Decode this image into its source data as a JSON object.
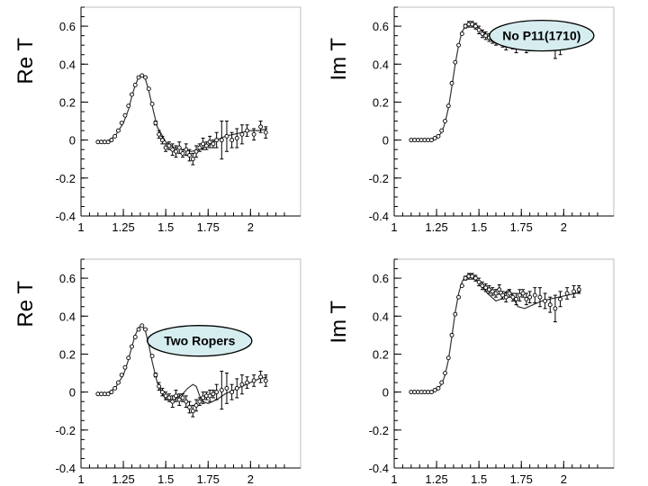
{
  "chart_data": [
    {
      "type": "scatter",
      "ylabel": "Re T",
      "xlim": [
        1.0,
        2.2
      ],
      "ylim": [
        -0.4,
        0.7
      ],
      "xticks": [
        {
          "v": 1,
          "label": "1"
        },
        {
          "v": 1.25,
          "label": "1.25"
        },
        {
          "v": 1.5,
          "label": "1.5"
        },
        {
          "v": 1.75,
          "label": "1.75"
        },
        {
          "v": 2,
          "label": "2"
        }
      ],
      "yticks": [
        {
          "v": 0.6,
          "label": "0.6"
        },
        {
          "v": 0.4,
          "label": "0.4"
        },
        {
          "v": 0.2,
          "label": "0.2"
        },
        {
          "v": 0,
          "label": "0"
        },
        {
          "v": -0.2,
          "label": "-0.2"
        },
        {
          "v": -0.4,
          "label": "-0.4"
        }
      ],
      "annotation": null,
      "curve": {
        "x": [
          1.1,
          1.15,
          1.2,
          1.25,
          1.28,
          1.3,
          1.32,
          1.34,
          1.36,
          1.38,
          1.4,
          1.42,
          1.45,
          1.5,
          1.55,
          1.6,
          1.65,
          1.7,
          1.75,
          1.8,
          1.85,
          1.9,
          1.95,
          2.0,
          2.05,
          2.1
        ],
        "y": [
          -0.01,
          -0.01,
          0.02,
          0.09,
          0.16,
          0.23,
          0.29,
          0.33,
          0.34,
          0.32,
          0.26,
          0.18,
          0.07,
          -0.01,
          -0.04,
          -0.05,
          -0.06,
          -0.05,
          -0.03,
          0.0,
          0.02,
          0.03,
          0.04,
          0.05,
          0.05,
          0.06
        ]
      },
      "points": {
        "x": [
          1.1,
          1.12,
          1.14,
          1.16,
          1.18,
          1.2,
          1.22,
          1.24,
          1.26,
          1.28,
          1.3,
          1.32,
          1.34,
          1.36,
          1.38,
          1.4,
          1.42,
          1.44,
          1.46,
          1.48,
          1.5,
          1.52,
          1.54,
          1.56,
          1.58,
          1.6,
          1.62,
          1.64,
          1.66,
          1.68,
          1.7,
          1.72,
          1.74,
          1.76,
          1.78,
          1.8,
          1.83,
          1.86,
          1.89,
          1.92,
          1.95,
          1.98,
          2.02,
          2.06,
          2.09
        ],
        "y": [
          -0.01,
          -0.01,
          -0.01,
          -0.01,
          0.0,
          0.02,
          0.05,
          0.09,
          0.13,
          0.18,
          0.24,
          0.29,
          0.33,
          0.34,
          0.33,
          0.27,
          0.19,
          0.09,
          0.03,
          0.0,
          -0.04,
          -0.03,
          -0.05,
          -0.06,
          -0.04,
          -0.07,
          -0.05,
          -0.08,
          -0.1,
          -0.06,
          -0.04,
          -0.02,
          -0.03,
          -0.01,
          -0.02,
          0.0,
          0.0,
          0.02,
          0.0,
          0.01,
          0.03,
          0.05,
          0.03,
          0.07,
          0.04
        ],
        "err": [
          0.005,
          0.005,
          0.005,
          0.005,
          0.005,
          0.005,
          0.005,
          0.005,
          0.005,
          0.005,
          0.005,
          0.005,
          0.005,
          0.005,
          0.005,
          0.005,
          0.005,
          0.01,
          0.02,
          0.02,
          0.02,
          0.02,
          0.03,
          0.03,
          0.03,
          0.02,
          0.03,
          0.03,
          0.03,
          0.03,
          0.02,
          0.03,
          0.02,
          0.03,
          0.02,
          0.04,
          0.1,
          0.08,
          0.04,
          0.05,
          0.05,
          0.03,
          0.03,
          0.03,
          0.03
        ]
      }
    },
    {
      "type": "scatter",
      "ylabel": "Im T",
      "xlim": [
        1.0,
        2.2
      ],
      "ylim": [
        -0.4,
        0.7
      ],
      "xticks": [
        {
          "v": 1,
          "label": "1"
        },
        {
          "v": 1.25,
          "label": "1.25"
        },
        {
          "v": 1.5,
          "label": "1.5"
        },
        {
          "v": 1.75,
          "label": "1.75"
        },
        {
          "v": 2,
          "label": "2"
        }
      ],
      "yticks": [
        {
          "v": 0.6,
          "label": "0.6"
        },
        {
          "v": 0.4,
          "label": "0.4"
        },
        {
          "v": 0.2,
          "label": "0.2"
        },
        {
          "v": 0,
          "label": "0"
        },
        {
          "v": -0.2,
          "label": "-0.2"
        },
        {
          "v": -0.4,
          "label": "-0.4"
        }
      ],
      "annotation": {
        "text": "No P11(1710)",
        "x": 1.87,
        "y": 0.55
      },
      "curve": {
        "x": [
          1.1,
          1.15,
          1.2,
          1.25,
          1.28,
          1.3,
          1.32,
          1.34,
          1.36,
          1.38,
          1.4,
          1.42,
          1.45,
          1.5,
          1.55,
          1.6,
          1.65,
          1.7,
          1.75,
          1.8,
          1.85,
          1.9,
          1.95,
          2.0,
          2.05,
          2.1
        ],
        "y": [
          0.0,
          0.0,
          0.0,
          0.01,
          0.04,
          0.09,
          0.17,
          0.28,
          0.4,
          0.5,
          0.57,
          0.6,
          0.61,
          0.59,
          0.55,
          0.52,
          0.5,
          0.49,
          0.49,
          0.49,
          0.5,
          0.5,
          0.51,
          0.52,
          0.53,
          0.53
        ]
      },
      "points": {
        "x": [
          1.1,
          1.12,
          1.14,
          1.16,
          1.18,
          1.2,
          1.22,
          1.24,
          1.26,
          1.28,
          1.3,
          1.32,
          1.34,
          1.36,
          1.38,
          1.4,
          1.42,
          1.44,
          1.46,
          1.48,
          1.5,
          1.52,
          1.54,
          1.56,
          1.58,
          1.6,
          1.62,
          1.64,
          1.66,
          1.68,
          1.7,
          1.72,
          1.74,
          1.76,
          1.78,
          1.8,
          1.83,
          1.86,
          1.89,
          1.92,
          1.95,
          1.98,
          2.02,
          2.06,
          2.09
        ],
        "y": [
          0.0,
          0.0,
          0.0,
          0.0,
          0.0,
          0.0,
          0.0,
          0.01,
          0.02,
          0.05,
          0.1,
          0.18,
          0.3,
          0.41,
          0.5,
          0.56,
          0.6,
          0.61,
          0.61,
          0.6,
          0.58,
          0.56,
          0.55,
          0.54,
          0.53,
          0.52,
          0.54,
          0.51,
          0.5,
          0.52,
          0.5,
          0.49,
          0.51,
          0.52,
          0.49,
          0.5,
          0.51,
          0.52,
          0.53,
          0.54,
          0.5,
          0.49,
          0.52,
          0.53,
          0.54
        ],
        "err": [
          0.005,
          0.005,
          0.005,
          0.005,
          0.005,
          0.005,
          0.005,
          0.005,
          0.005,
          0.005,
          0.005,
          0.005,
          0.005,
          0.005,
          0.005,
          0.005,
          0.01,
          0.015,
          0.015,
          0.015,
          0.02,
          0.02,
          0.02,
          0.02,
          0.02,
          0.02,
          0.025,
          0.02,
          0.025,
          0.02,
          0.02,
          0.03,
          0.03,
          0.02,
          0.03,
          0.03,
          0.04,
          0.05,
          0.04,
          0.04,
          0.07,
          0.04,
          0.03,
          0.03,
          0.02
        ]
      }
    },
    {
      "type": "scatter",
      "ylabel": "Re T",
      "xlim": [
        1.0,
        2.2
      ],
      "ylim": [
        -0.4,
        0.7
      ],
      "xticks": [
        {
          "v": 1,
          "label": "1"
        },
        {
          "v": 1.25,
          "label": "1.25"
        },
        {
          "v": 1.5,
          "label": "1.5"
        },
        {
          "v": 1.75,
          "label": "1.75"
        },
        {
          "v": 2,
          "label": "2"
        }
      ],
      "yticks": [
        {
          "v": 0.6,
          "label": "0.6"
        },
        {
          "v": 0.4,
          "label": "0.4"
        },
        {
          "v": 0.2,
          "label": "0.2"
        },
        {
          "v": 0,
          "label": "0"
        },
        {
          "v": -0.2,
          "label": "-0.2"
        },
        {
          "v": -0.4,
          "label": "-0.4"
        }
      ],
      "annotation": {
        "text": "Two Ropers",
        "x": 1.7,
        "y": 0.27
      },
      "curve": {
        "x": [
          1.1,
          1.15,
          1.2,
          1.25,
          1.28,
          1.3,
          1.32,
          1.34,
          1.36,
          1.38,
          1.4,
          1.42,
          1.45,
          1.5,
          1.55,
          1.6,
          1.63,
          1.66,
          1.68,
          1.7,
          1.72,
          1.75,
          1.8,
          1.85,
          1.9,
          1.95,
          2.0,
          2.05,
          2.1
        ],
        "y": [
          -0.01,
          -0.01,
          0.02,
          0.09,
          0.17,
          0.24,
          0.3,
          0.34,
          0.35,
          0.32,
          0.25,
          0.16,
          0.05,
          -0.04,
          -0.04,
          -0.01,
          0.02,
          0.04,
          0.03,
          -0.02,
          -0.05,
          -0.06,
          -0.04,
          -0.01,
          0.01,
          0.03,
          0.05,
          0.07,
          0.08
        ]
      },
      "points": {
        "x": [
          1.1,
          1.12,
          1.14,
          1.16,
          1.18,
          1.2,
          1.22,
          1.24,
          1.26,
          1.28,
          1.3,
          1.32,
          1.34,
          1.36,
          1.38,
          1.4,
          1.42,
          1.44,
          1.46,
          1.48,
          1.5,
          1.52,
          1.54,
          1.56,
          1.58,
          1.6,
          1.62,
          1.64,
          1.66,
          1.68,
          1.7,
          1.72,
          1.74,
          1.76,
          1.78,
          1.8,
          1.83,
          1.86,
          1.89,
          1.92,
          1.95,
          1.98,
          2.02,
          2.06,
          2.09
        ],
        "y": [
          -0.01,
          -0.01,
          -0.01,
          -0.01,
          0.0,
          0.02,
          0.05,
          0.09,
          0.13,
          0.18,
          0.24,
          0.29,
          0.33,
          0.35,
          0.33,
          0.27,
          0.19,
          0.09,
          0.03,
          0.0,
          -0.02,
          -0.03,
          -0.05,
          -0.02,
          -0.04,
          -0.03,
          -0.05,
          -0.08,
          -0.1,
          -0.07,
          -0.05,
          -0.03,
          -0.02,
          -0.02,
          -0.01,
          0.0,
          0.01,
          0.02,
          0.0,
          0.02,
          0.04,
          0.05,
          0.06,
          0.08,
          0.06
        ],
        "err": [
          0.005,
          0.005,
          0.005,
          0.005,
          0.005,
          0.005,
          0.005,
          0.005,
          0.005,
          0.005,
          0.005,
          0.005,
          0.005,
          0.005,
          0.005,
          0.005,
          0.005,
          0.01,
          0.02,
          0.02,
          0.02,
          0.02,
          0.03,
          0.03,
          0.03,
          0.02,
          0.03,
          0.03,
          0.03,
          0.03,
          0.02,
          0.03,
          0.02,
          0.03,
          0.02,
          0.04,
          0.1,
          0.08,
          0.04,
          0.05,
          0.05,
          0.03,
          0.03,
          0.03,
          0.03
        ]
      }
    },
    {
      "type": "scatter",
      "ylabel": "Im T",
      "xlim": [
        1.0,
        2.2
      ],
      "ylim": [
        -0.4,
        0.7
      ],
      "xticks": [
        {
          "v": 1,
          "label": "1"
        },
        {
          "v": 1.25,
          "label": "1.25"
        },
        {
          "v": 1.5,
          "label": "1.5"
        },
        {
          "v": 1.75,
          "label": "1.75"
        },
        {
          "v": 2,
          "label": "2"
        }
      ],
      "yticks": [
        {
          "v": 0.6,
          "label": "0.6"
        },
        {
          "v": 0.4,
          "label": "0.4"
        },
        {
          "v": 0.2,
          "label": "0.2"
        },
        {
          "v": 0,
          "label": "0"
        },
        {
          "v": -0.2,
          "label": "-0.2"
        },
        {
          "v": -0.4,
          "label": "-0.4"
        }
      ],
      "annotation": null,
      "curve": {
        "x": [
          1.1,
          1.15,
          1.2,
          1.25,
          1.28,
          1.3,
          1.32,
          1.34,
          1.36,
          1.38,
          1.4,
          1.42,
          1.45,
          1.5,
          1.55,
          1.6,
          1.63,
          1.66,
          1.68,
          1.7,
          1.73,
          1.77,
          1.82,
          1.87,
          1.92,
          1.97,
          2.02,
          2.07,
          2.1
        ],
        "y": [
          0.0,
          0.0,
          0.0,
          0.01,
          0.04,
          0.09,
          0.17,
          0.29,
          0.42,
          0.52,
          0.58,
          0.61,
          0.62,
          0.58,
          0.52,
          0.48,
          0.49,
          0.53,
          0.54,
          0.5,
          0.45,
          0.44,
          0.46,
          0.48,
          0.49,
          0.5,
          0.51,
          0.52,
          0.53
        ]
      },
      "points": {
        "x": [
          1.1,
          1.12,
          1.14,
          1.16,
          1.18,
          1.2,
          1.22,
          1.24,
          1.26,
          1.28,
          1.3,
          1.32,
          1.34,
          1.36,
          1.38,
          1.4,
          1.42,
          1.44,
          1.46,
          1.48,
          1.5,
          1.52,
          1.54,
          1.56,
          1.58,
          1.6,
          1.62,
          1.64,
          1.66,
          1.68,
          1.7,
          1.72,
          1.74,
          1.76,
          1.78,
          1.8,
          1.83,
          1.86,
          1.89,
          1.92,
          1.95,
          1.98,
          2.02,
          2.06,
          2.09
        ],
        "y": [
          0.0,
          0.0,
          0.0,
          0.0,
          0.0,
          0.0,
          0.0,
          0.01,
          0.02,
          0.05,
          0.1,
          0.18,
          0.3,
          0.41,
          0.5,
          0.56,
          0.6,
          0.61,
          0.61,
          0.6,
          0.58,
          0.56,
          0.55,
          0.54,
          0.53,
          0.52,
          0.54,
          0.51,
          0.5,
          0.52,
          0.5,
          0.49,
          0.51,
          0.52,
          0.49,
          0.5,
          0.51,
          0.5,
          0.48,
          0.46,
          0.44,
          0.49,
          0.52,
          0.53,
          0.54
        ],
        "err": [
          0.005,
          0.005,
          0.005,
          0.005,
          0.005,
          0.005,
          0.005,
          0.005,
          0.005,
          0.005,
          0.005,
          0.005,
          0.005,
          0.005,
          0.005,
          0.005,
          0.01,
          0.015,
          0.015,
          0.015,
          0.02,
          0.02,
          0.02,
          0.02,
          0.02,
          0.02,
          0.025,
          0.02,
          0.025,
          0.02,
          0.02,
          0.03,
          0.03,
          0.02,
          0.03,
          0.03,
          0.04,
          0.05,
          0.04,
          0.04,
          0.07,
          0.04,
          0.03,
          0.03,
          0.02
        ]
      }
    }
  ]
}
